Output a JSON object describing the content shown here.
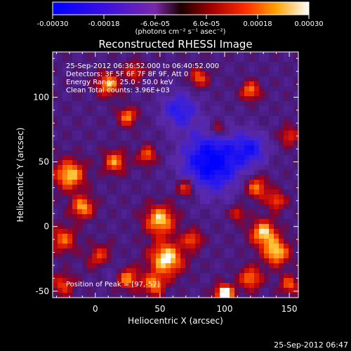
{
  "colorbar": {
    "tick_labels": [
      "-0.00030",
      "-0.00018",
      "-6.0e-05",
      "6.0e-05",
      "0.00018",
      "0.00030"
    ],
    "tick_values": [
      -0.0003,
      -0.00018,
      -6e-05,
      6e-05,
      0.00018,
      0.0003
    ],
    "range": [
      -0.0003,
      0.0003
    ],
    "units_label": "(photons cm⁻² s⁻¹ asec⁻²)"
  },
  "chart_data": {
    "type": "heatmap",
    "title": "Reconstructed RHESSI Image",
    "xlabel": "Heliocentric X (arcsec)",
    "ylabel": "Heliocentric Y (arcsec)",
    "xlim": [
      -33,
      157
    ],
    "ylim": [
      -55,
      135
    ],
    "xticks": [
      0,
      50,
      100,
      150
    ],
    "yticks": [
      -50,
      0,
      50,
      100
    ],
    "info_lines": [
      "25-Sep-2012 06:36:52.000 to 06:40:52.000",
      "Detectors: 3F 5F 6F 7F 8F 9F, Att 0",
      "Energy Range: 25.0 - 50.0 keV",
      "Clean     Total counts: 3.96E+03"
    ],
    "peak_label": "Position of Peak = [97,-57]",
    "peak_position": [
      97,
      -57
    ],
    "grid": false,
    "colormap": "blue-purple-red-yellow-white"
  },
  "footer": {
    "timestamp": "25-Sep-2012 06:47"
  }
}
